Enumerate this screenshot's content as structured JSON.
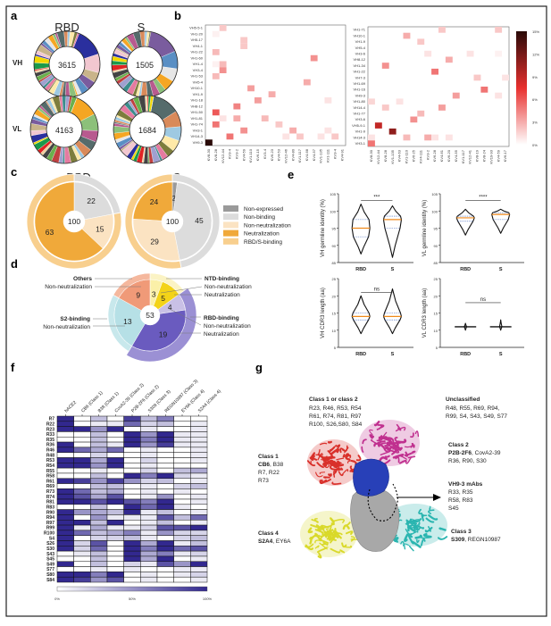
{
  "panels": {
    "a": "a",
    "b": "b",
    "c": "c",
    "d": "d",
    "e": "e",
    "f": "f",
    "g": "g"
  },
  "panel_a": {
    "columns": [
      "RBD",
      "S"
    ],
    "rows": [
      "VH",
      "VL"
    ],
    "counts": {
      "VH_RBD": "3615",
      "VH_S": "1505",
      "VL_RBD": "4163",
      "VL_S": "1684"
    }
  },
  "chart_data": [
    {
      "id": "b-left",
      "type": "heatmap",
      "rows": [
        "VH5-5-1",
        "VH1-20",
        "VH5-17",
        "VH4-1",
        "VH1-22",
        "VH1-60",
        "VH1-4",
        "VH3-4",
        "VH1-53",
        "VH5-4",
        "VH10-1",
        "VH1-9",
        "VH1-18",
        "VH8-12",
        "VH1-50",
        "VH1-81",
        "VH1-74",
        "VH3-1",
        "VH14-3",
        "VH9-3"
      ],
      "columns": [
        "KV8-30",
        "KV8-28",
        "KV12-44",
        "KV3-4",
        "KV3-2",
        "KV4-59",
        "KV1-110",
        "KV6-15",
        "KV3-4",
        "KV6-23",
        "KV4-53",
        "KV12-46",
        "KV4-80",
        "KV1-117",
        "KV4-68",
        "KV4-57",
        "KV1-135",
        "KV1-111",
        "KV3-4",
        "KV4-91"
      ],
      "cells": [
        [
          0,
          2,
          2
        ],
        [
          1,
          1,
          0.5
        ],
        [
          2,
          5,
          2
        ],
        [
          3,
          5,
          2
        ],
        [
          4,
          1,
          2.5
        ],
        [
          5,
          15,
          4
        ],
        [
          6,
          1,
          0.5
        ],
        [
          6,
          2,
          2.5
        ],
        [
          7,
          2,
          4
        ],
        [
          8,
          1,
          2.5
        ],
        [
          9,
          14,
          3
        ],
        [
          10,
          6,
          3.5
        ],
        [
          11,
          9,
          3
        ],
        [
          12,
          7,
          3.5
        ],
        [
          12,
          17,
          1
        ],
        [
          13,
          4,
          4.5
        ],
        [
          14,
          1,
          6
        ],
        [
          15,
          2,
          1
        ],
        [
          15,
          4,
          3
        ],
        [
          15,
          8,
          2.5
        ],
        [
          16,
          1,
          5
        ],
        [
          16,
          10,
          2
        ],
        [
          17,
          5,
          4
        ],
        [
          17,
          12,
          3
        ],
        [
          17,
          17,
          1
        ],
        [
          18,
          3,
          5
        ],
        [
          18,
          11,
          1
        ],
        [
          18,
          13,
          2
        ],
        [
          18,
          16,
          1
        ],
        [
          18,
          18,
          2
        ],
        [
          19,
          0,
          15
        ]
      ],
      "cell_format": "[row, column, percent]"
    },
    {
      "id": "b-right",
      "type": "heatmap",
      "rows": [
        "VH1-71",
        "VH10-1",
        "VH1-9",
        "VH5-4",
        "VH3-6",
        "VH8-12",
        "VH1-34",
        "VH1-22",
        "VH7-3",
        "VH1-69",
        "VH1-16",
        "VH9-3",
        "VH1-80",
        "VH14-4",
        "VH1-77",
        "VH3-6",
        "VH5-9-1",
        "VH1-9",
        "VH14-3",
        "VH3-1"
      ],
      "columns": [
        "KV8-30",
        "KV12-44",
        "KV8-28",
        "KV1-135",
        "KV4-63",
        "KV1-110",
        "KV6-25",
        "KV4-111",
        "KV3-2",
        "KV6-28",
        "KV4-61",
        "KV6-20",
        "KV4-55",
        "KV1-117",
        "KV12-41",
        "KV8-19",
        "KV8-24",
        "KV19-93",
        "KV4-59",
        "KV6-17"
      ],
      "cells": [
        [
          0,
          10,
          2
        ],
        [
          0,
          18,
          2
        ],
        [
          1,
          5,
          3
        ],
        [
          2,
          7,
          2
        ],
        [
          4,
          8,
          1
        ],
        [
          4,
          14,
          1
        ],
        [
          4,
          18,
          0.5
        ],
        [
          5,
          11,
          3
        ],
        [
          6,
          2,
          4
        ],
        [
          7,
          9,
          5
        ],
        [
          8,
          15,
          2
        ],
        [
          8,
          19,
          1
        ],
        [
          10,
          16,
          5
        ],
        [
          11,
          12,
          3.5
        ],
        [
          11,
          18,
          1
        ],
        [
          12,
          0,
          1.5
        ],
        [
          12,
          4,
          1
        ],
        [
          13,
          2,
          2
        ],
        [
          13,
          10,
          3.5
        ],
        [
          14,
          7,
          2.5
        ],
        [
          15,
          6,
          4
        ],
        [
          16,
          1,
          9
        ],
        [
          17,
          3,
          11
        ],
        [
          18,
          0,
          1
        ],
        [
          18,
          5,
          2.5
        ],
        [
          18,
          8,
          3
        ],
        [
          18,
          9,
          1
        ],
        [
          18,
          11,
          1
        ],
        [
          19,
          0,
          5
        ]
      ],
      "cell_format": "[row, column, percent]"
    },
    {
      "id": "b-colorbar",
      "type": "colorbar",
      "ticks": [
        "15%",
        "12%",
        "9%",
        "6%",
        "3%",
        "0%"
      ],
      "range": [
        0,
        15
      ],
      "colors": [
        "#ffffff",
        "#e8302e",
        "#2a0a08"
      ]
    },
    {
      "id": "c",
      "type": "pie",
      "groups": [
        {
          "title": "RBD",
          "center": "100",
          "slices": [
            {
              "label": "22",
              "value": 22,
              "class": "Non-binding"
            },
            {
              "label": "15",
              "value": 15,
              "class": "Non-neutralization"
            },
            {
              "label": "63",
              "value": 63,
              "class": "Neutralization"
            }
          ],
          "outer": [
            {
              "value": 22,
              "class": "Non-binding"
            },
            {
              "value": 78,
              "class": "RBD/S-binding"
            }
          ]
        },
        {
          "title": "S",
          "center": "100",
          "slices": [
            {
              "label": "2",
              "value": 2,
              "class": "Non-expressed"
            },
            {
              "label": "45",
              "value": 45,
              "class": "Non-binding"
            },
            {
              "label": "29",
              "value": 29,
              "class": "Non-neutralization"
            },
            {
              "label": "24",
              "value": 24,
              "class": "Neutralization"
            }
          ],
          "outer": [
            {
              "value": 47,
              "class": "Non-binding"
            },
            {
              "value": 53,
              "class": "RBD/S-binding"
            }
          ]
        }
      ],
      "legend": [
        {
          "label": "Non-expressed",
          "color": "#9a9a9a"
        },
        {
          "label": "Non-binding",
          "color": "#dcdcdc"
        },
        {
          "label": "Non-neutralization",
          "color": "#fbe3c2"
        },
        {
          "label": "Neutralization",
          "color": "#f0a93a"
        },
        {
          "label": "RBD/S-binding",
          "color": "#f8cf8e"
        }
      ],
      "legend_position": "right"
    },
    {
      "id": "d",
      "type": "pie",
      "center": "53",
      "slices": [
        {
          "label": "3",
          "value": 3,
          "color": "#fbf0a8"
        },
        {
          "label": "5",
          "value": 5,
          "color": "#f3d318"
        },
        {
          "label": "4",
          "value": 4,
          "color": "#c9c0e6"
        },
        {
          "label": "19",
          "value": 19,
          "color": "#6a5bbf"
        },
        {
          "label": "13",
          "value": 13,
          "color": "#b6e0e6"
        },
        {
          "label": "9",
          "value": 9,
          "color": "#f09a78"
        }
      ],
      "outer": [
        {
          "value": 8,
          "color": "#fbf3c4"
        },
        {
          "value": 23,
          "color": "#9b90d4"
        },
        {
          "value": 13,
          "color": "#c8e8ec"
        },
        {
          "value": 9,
          "color": "#f5b89e"
        }
      ],
      "annotations": {
        "others": {
          "title": "Others",
          "lines": [
            "Non-neutralization"
          ]
        },
        "ntd": {
          "title": "NTD-binding",
          "lines": [
            "Non-neutralization",
            "Neutralization"
          ]
        },
        "s2": {
          "title": "S2-binding",
          "lines": [
            "Non-neutralization"
          ]
        },
        "rbd": {
          "title": "RBD-binding",
          "lines": [
            "Non-neutralization",
            "Neutralization"
          ]
        }
      }
    },
    {
      "id": "e",
      "type": "violin",
      "plots": [
        {
          "ylabel": "VH germline identity (%)",
          "ylim": [
            85,
            105
          ],
          "ticks": [
            "105",
            "100",
            "95",
            "90",
            "85"
          ],
          "sig": "***",
          "groups": [
            {
              "name": "RBD",
              "min": 87.5,
              "q1": 92.5,
              "median": 95,
              "q3": 97.5,
              "max": 102
            },
            {
              "name": "S",
              "min": 86.5,
              "q1": 95,
              "median": 97.5,
              "q3": 98.5,
              "max": 101.5
            }
          ]
        },
        {
          "ylabel": "VL germline identity (%)",
          "ylim": [
            85,
            105
          ],
          "ticks": [
            "105",
            "100",
            "95",
            "90",
            "85"
          ],
          "sig": "****",
          "groups": [
            {
              "name": "RBD",
              "min": 93,
              "q1": 97,
              "median": 98,
              "q3": 98.5,
              "max": 100.5
            },
            {
              "name": "S",
              "min": 93.5,
              "q1": 97.5,
              "median": 99,
              "q3": 99.5,
              "max": 100.5
            }
          ]
        },
        {
          "ylabel": "VH CDR3 length (aa)",
          "ylim": [
            5,
            25
          ],
          "ticks": [
            "25",
            "20",
            "15",
            "10",
            "5"
          ],
          "sig": "ns",
          "groups": [
            {
              "name": "RBD",
              "min": 9,
              "q1": 13,
              "median": 14,
              "q3": 15,
              "max": 20
            },
            {
              "name": "S",
              "min": 9,
              "q1": 13,
              "median": 14,
              "q3": 15,
              "max": 22
            }
          ]
        },
        {
          "ylabel": "VL CDR3 length (aa)",
          "ylim": [
            5,
            25
          ],
          "ticks": [
            "25",
            "20",
            "15",
            "10",
            "5"
          ],
          "sig": "ns",
          "groups": [
            {
              "name": "RBD",
              "min": 10,
              "q1": 11,
              "median": 11,
              "q3": 11,
              "max": 12
            },
            {
              "name": "S",
              "min": 10,
              "q1": 11,
              "median": 11,
              "q3": 11,
              "max": 13
            }
          ]
        }
      ]
    },
    {
      "id": "f",
      "type": "heatmap",
      "columns": [
        "hACE2",
        "CB6 (Class 1)",
        "B38 (Class 1)",
        "CovA2-39 (Class 2)",
        "P2B-2F6 (Class 2)",
        "S309 (Class 3)",
        "REGN10987 (Class 3)",
        "EY6A (Class 4)",
        "S2A4 (Class 4)"
      ],
      "rows": [
        "R7",
        "R22",
        "R23",
        "R33",
        "R35",
        "R36",
        "R46",
        "R48",
        "R53",
        "R54",
        "R55",
        "R58",
        "R61",
        "R69",
        "R73",
        "R74",
        "R81",
        "R83",
        "R90",
        "R94",
        "R97",
        "R99",
        "R100",
        "S4",
        "S26",
        "S30",
        "S43",
        "S45",
        "S49",
        "S77",
        "S80",
        "S84"
      ],
      "values": [
        [
          1,
          0,
          0.3,
          0,
          0.9,
          0.3,
          0.6,
          0,
          0
        ],
        [
          1,
          0,
          0.1,
          0.1,
          0.7,
          0.2,
          0.3,
          0,
          0.1
        ],
        [
          1,
          1,
          0.5,
          1,
          0,
          0.1,
          0,
          0,
          0.1
        ],
        [
          0,
          0,
          0.3,
          0,
          1,
          0.5,
          1,
          0.1,
          0.1
        ],
        [
          0,
          0,
          0.3,
          0,
          1,
          0.6,
          1,
          0.1,
          0.1
        ],
        [
          1,
          0,
          0.3,
          0.1,
          1,
          0.5,
          0.9,
          0.1,
          0.1
        ],
        [
          1,
          0.7,
          0.4,
          0.7,
          0,
          0.1,
          0,
          0,
          0.1
        ],
        [
          0,
          0,
          0.2,
          0,
          0,
          0.1,
          0,
          0,
          0.1
        ],
        [
          1,
          1,
          0.4,
          1,
          0,
          0.2,
          0,
          0,
          0.1
        ],
        [
          1,
          1,
          0.5,
          1,
          0,
          0.1,
          0,
          0,
          0
        ],
        [
          0,
          0,
          0.1,
          0,
          0,
          0.2,
          0,
          0.3,
          0.4
        ],
        [
          0,
          0,
          0.3,
          0,
          1,
          0.6,
          1,
          0.2,
          0.1
        ],
        [
          1,
          0.9,
          0.5,
          0.9,
          0.5,
          0.2,
          0.3,
          0,
          0.1
        ],
        [
          0,
          0,
          0.3,
          0.3,
          0,
          0.1,
          0,
          0.2,
          0.3
        ],
        [
          1,
          0.7,
          0.3,
          0.4,
          0,
          0.1,
          0,
          0.1,
          0
        ],
        [
          1,
          0.8,
          0.4,
          0.8,
          0,
          0.1,
          0.5,
          0,
          0.1
        ],
        [
          1,
          1,
          0.8,
          1,
          0.8,
          0.6,
          1,
          0,
          0.1
        ],
        [
          0,
          0,
          0.3,
          0,
          1,
          0.7,
          1,
          0.1,
          0
        ],
        [
          1,
          0.5,
          0.4,
          0.3,
          1,
          0.1,
          0.3,
          0,
          0.1
        ],
        [
          1,
          0,
          0.5,
          0.1,
          0.1,
          0.1,
          0.8,
          0.3,
          0.7
        ],
        [
          1,
          1,
          0.3,
          1,
          0,
          0.1,
          0.3,
          0,
          0.1
        ],
        [
          1,
          0.1,
          0.4,
          0.1,
          0.1,
          0.2,
          0.8,
          0.8,
          1
        ],
        [
          1,
          0.7,
          0.3,
          0.4,
          0.6,
          0.1,
          0.5,
          0.2,
          0.2
        ],
        [
          1,
          0,
          0.2,
          0.2,
          0.3,
          0.1,
          0,
          0.2,
          0.3
        ],
        [
          1,
          0.2,
          0.8,
          0,
          1,
          0.4,
          1,
          0.1,
          0.3
        ],
        [
          1,
          0.2,
          0.7,
          0,
          1,
          0.6,
          1,
          0.7,
          0.8
        ],
        [
          0,
          0.1,
          0.3,
          0,
          1,
          0.4,
          0.6,
          0.1,
          0.2
        ],
        [
          0,
          0,
          0.3,
          0,
          1,
          0.4,
          1,
          0,
          0.1
        ],
        [
          1,
          0,
          0.3,
          0,
          0.2,
          0.1,
          0.8,
          0.5,
          1
        ],
        [
          0,
          0,
          0.1,
          0,
          0.1,
          0,
          0,
          0.1,
          0.1
        ],
        [
          1,
          1,
          0.6,
          1,
          0,
          0.1,
          0,
          0.1,
          0.2
        ],
        [
          1,
          0.9,
          0.5,
          0.8,
          0,
          0.1,
          0,
          0,
          0.1
        ]
      ],
      "colorbar": {
        "ticks": [
          "0%",
          "50%",
          "100%"
        ],
        "colors": [
          "#ffffff",
          "#32288f"
        ]
      }
    }
  ],
  "panel_g": {
    "class12": {
      "title": "Class 1 or class 2",
      "lines": [
        "R23, R46, R53, R54",
        "R61, R74, R81, R97",
        "R100, S26,S80, S84"
      ]
    },
    "unclassified": {
      "title": "Unclassified",
      "lines": [
        "R48, R55, R69, R94,",
        "R99, S4, S43, S49, S77"
      ]
    },
    "class1": {
      "title": "Class 1",
      "bold": "CB6",
      "rest": ", B38",
      "lines": [
        "R7, R22",
        "R73"
      ]
    },
    "class2": {
      "title": "Class 2",
      "bold": "P2B-2F6",
      "rest": ", CovA2-39",
      "lines": [
        "R36, R90, S30"
      ]
    },
    "vh93": {
      "title": "VH9-3 mAbs",
      "lines": [
        "R33, R35",
        "R58, R83",
        "S45"
      ]
    },
    "class4": {
      "title": "Class 4",
      "bold": "S2A4",
      "rest": ", EY6A"
    },
    "class3": {
      "title": "Class 3",
      "bold": "S309",
      "rest": ", REGN10987"
    },
    "colors": {
      "class1": "#d9302a",
      "class2": "#c0308f",
      "class3": "#2bb5b0",
      "class4": "#d9d92a",
      "rbd": "#2840b8",
      "core": "#a8a8a8"
    }
  }
}
